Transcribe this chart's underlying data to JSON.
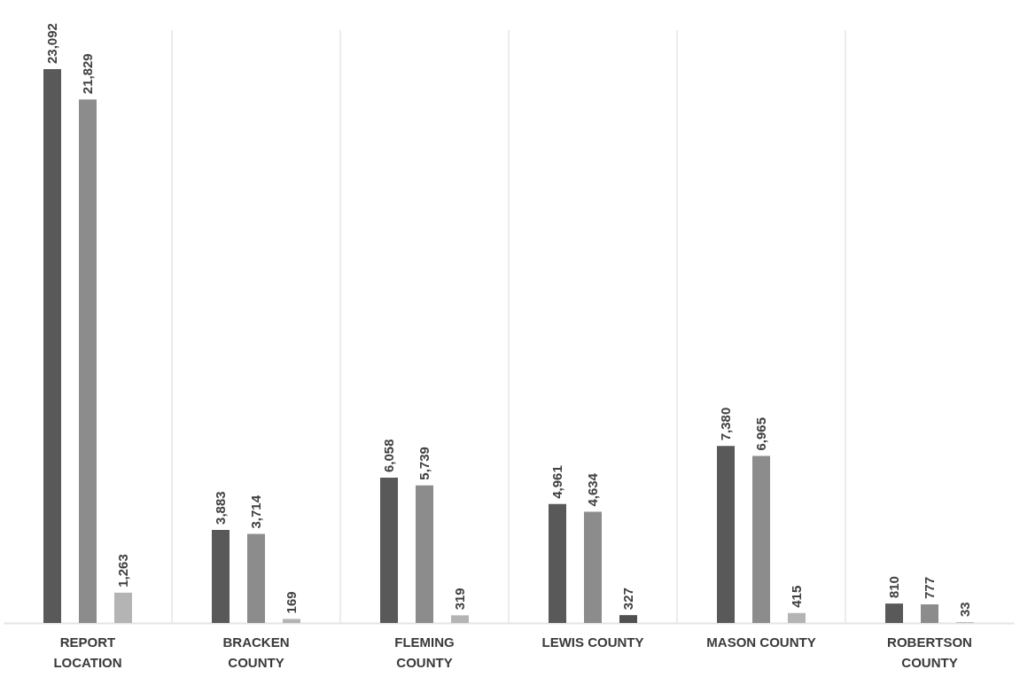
{
  "chart_data": {
    "type": "bar",
    "categories": [
      "REPORT LOCATION",
      "BRACKEN COUNTY",
      "FLEMING COUNTY",
      "LEWIS COUNTY",
      "MASON COUNTY",
      "ROBERTSON COUNTY"
    ],
    "series": [
      {
        "color": "#595959",
        "values": [
          23092,
          3883,
          6058,
          4961,
          7380,
          810
        ],
        "value_labels": [
          "23,092",
          "3,883",
          "6,058",
          "4,961",
          "7,380",
          "810"
        ]
      },
      {
        "color": "#8c8c8c",
        "values": [
          21829,
          3714,
          5739,
          4634,
          6965,
          777
        ],
        "value_labels": [
          "21,829",
          "3,714",
          "5,739",
          "4,634",
          "6,965",
          "777"
        ]
      },
      {
        "color": "#b4b4b4",
        "colors": [
          null,
          null,
          null,
          "#505050",
          null,
          null
        ],
        "values": [
          1263,
          169,
          319,
          327,
          415,
          33
        ],
        "value_labels": [
          "1,263",
          "169",
          "319",
          "327",
          "415",
          "33"
        ]
      }
    ],
    "grid": "x"
  }
}
